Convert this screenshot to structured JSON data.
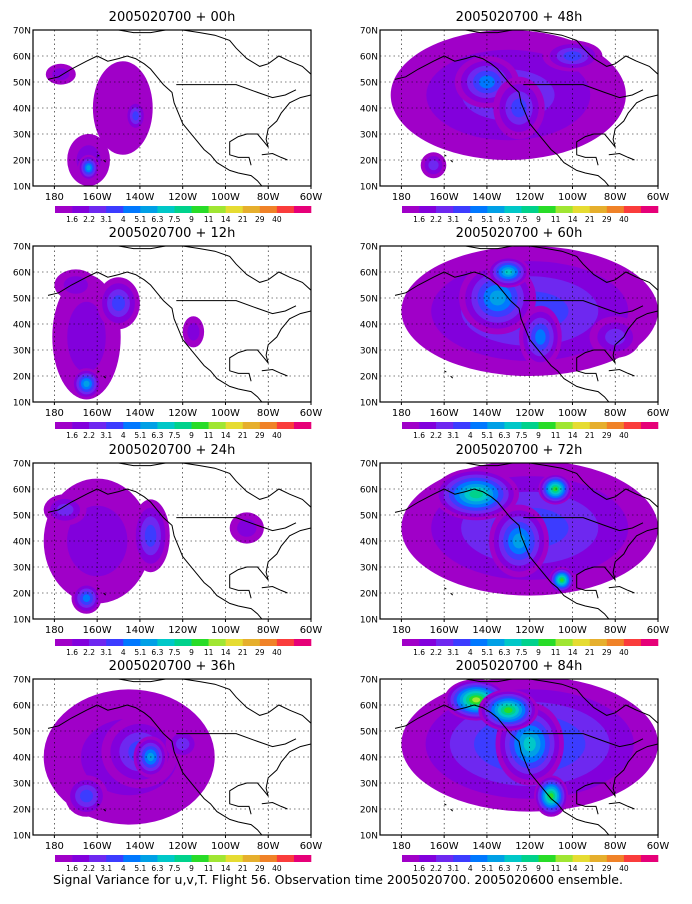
{
  "figure": {
    "caption": "Signal Variance for u,v,T. Flight 56. Observation time 2005020700. 2005020600 ensemble."
  },
  "colorbar": {
    "labels": [
      "1.6",
      "2.2",
      "3.1",
      "4",
      "5.1",
      "6.3",
      "7.5",
      "9",
      "11",
      "14",
      "21",
      "29",
      "40"
    ],
    "colors": [
      "#a000c8",
      "#8200dc",
      "#6e28f0",
      "#3c3cff",
      "#0078ff",
      "#00a0e6",
      "#00c8c8",
      "#00d28c",
      "#28dc28",
      "#a0e632",
      "#e6dc32",
      "#e6af2d",
      "#f08228",
      "#fa3c3c",
      "#e60078"
    ]
  },
  "axes": {
    "x_ticks": [
      "180",
      "160W",
      "140W",
      "120W",
      "100W",
      "80W",
      "60W"
    ],
    "y_ticks": [
      "10N",
      "20N",
      "30N",
      "40N",
      "50N",
      "60N",
      "70N"
    ]
  },
  "chart_data": [
    {
      "type": "heatmap",
      "title": "2005020700 + 00h",
      "lead_hours": 0,
      "x_range": [
        "170E",
        "60W"
      ],
      "y_range": [
        "10N",
        "70N"
      ]
    },
    {
      "type": "heatmap",
      "title": "2005020700 + 48h",
      "lead_hours": 48,
      "x_range": [
        "170E",
        "60W"
      ],
      "y_range": [
        "10N",
        "70N"
      ]
    },
    {
      "type": "heatmap",
      "title": "2005020700 + 12h",
      "lead_hours": 12,
      "x_range": [
        "170E",
        "60W"
      ],
      "y_range": [
        "10N",
        "70N"
      ]
    },
    {
      "type": "heatmap",
      "title": "2005020700 + 60h",
      "lead_hours": 60,
      "x_range": [
        "170E",
        "60W"
      ],
      "y_range": [
        "10N",
        "70N"
      ]
    },
    {
      "type": "heatmap",
      "title": "2005020700 + 24h",
      "lead_hours": 24,
      "x_range": [
        "170E",
        "60W"
      ],
      "y_range": [
        "10N",
        "70N"
      ]
    },
    {
      "type": "heatmap",
      "title": "2005020700 + 72h",
      "lead_hours": 72,
      "x_range": [
        "170E",
        "60W"
      ],
      "y_range": [
        "10N",
        "70N"
      ]
    },
    {
      "type": "heatmap",
      "title": "2005020700 + 36h",
      "lead_hours": 36,
      "x_range": [
        "170E",
        "60W"
      ],
      "y_range": [
        "10N",
        "70N"
      ]
    },
    {
      "type": "heatmap",
      "title": "2005020700 + 84h",
      "lead_hours": 84,
      "x_range": [
        "170E",
        "60W"
      ],
      "y_range": [
        "10N",
        "70N"
      ]
    }
  ]
}
